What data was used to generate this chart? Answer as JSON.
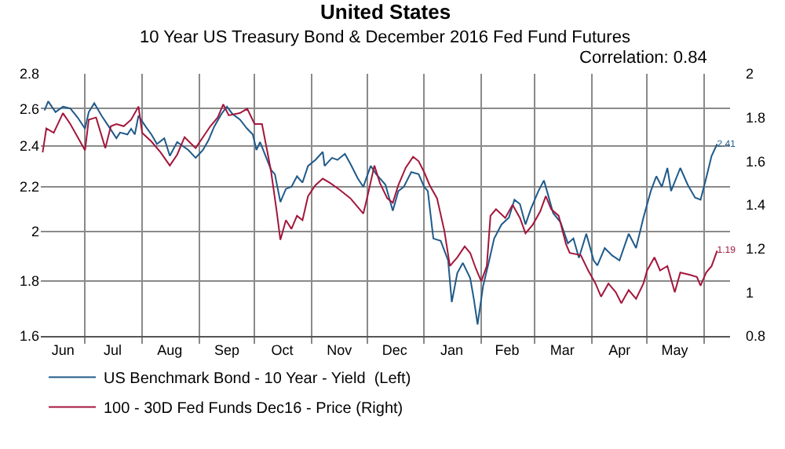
{
  "chart_data": {
    "type": "line",
    "title": "United States",
    "subtitle": "10 Year US Treasury Bond & December 2016 Fed Fund Futures",
    "annotations": [
      "Correlation: 0.84"
    ],
    "log": true,
    "grid": true,
    "legend": "bottom left",
    "xlim": [
      "2015-06-07",
      "2016-06-15"
    ],
    "xticks": [
      {
        "value": "2015-06-19",
        "label": "Jun"
      },
      {
        "value": "2015-07-01",
        "label": null
      },
      {
        "value": "2015-07-16",
        "label": "Jul"
      },
      {
        "value": "2015-08-01",
        "label": null
      },
      {
        "value": "2015-08-16",
        "label": "Aug"
      },
      {
        "value": "2015-09-01",
        "label": null
      },
      {
        "value": "2015-09-16",
        "label": "Sep"
      },
      {
        "value": "2015-10-01",
        "label": null
      },
      {
        "value": "2015-10-16",
        "label": "Oct"
      },
      {
        "value": "2015-11-01",
        "label": null
      },
      {
        "value": "2015-11-16",
        "label": "Nov"
      },
      {
        "value": "2015-12-01",
        "label": null
      },
      {
        "value": "2015-12-16",
        "label": "Dec"
      },
      {
        "value": "2016-01-01",
        "label": null
      },
      {
        "value": "2016-01-16",
        "label": "Jan"
      },
      {
        "value": "2016-02-01",
        "label": null
      },
      {
        "value": "2016-02-15",
        "label": "Feb"
      },
      {
        "value": "2016-03-01",
        "label": null
      },
      {
        "value": "2016-03-16",
        "label": "Mar"
      },
      {
        "value": "2016-04-01",
        "label": null
      },
      {
        "value": "2016-04-16",
        "label": "Apr"
      },
      {
        "value": "2016-05-01",
        "label": null
      },
      {
        "value": "2016-05-16",
        "label": "May"
      },
      {
        "value": "2016-06-01",
        "label": null
      }
    ],
    "ylim": [
      1.6,
      2.8
    ],
    "yticks": [
      1.6,
      1.8,
      2,
      2.2,
      2.4,
      2.6,
      2.8
    ],
    "y2lim": [
      0.8,
      2
    ],
    "y2ticks": [
      0.8,
      1,
      1.2,
      1.4,
      1.6,
      1.8,
      2
    ],
    "series": [
      {
        "name": "US Benchmark Bond - 10 Year - Yield  (Left)",
        "color": "#1f5a8a",
        "x": [
          "2015-06-09",
          "2015-06-11",
          "2015-06-15",
          "2015-06-19",
          "2015-06-23",
          "2015-06-27",
          "2015-07-01",
          "2015-07-03",
          "2015-07-06",
          "2015-07-10",
          "2015-07-14",
          "2015-07-18",
          "2015-07-20",
          "2015-07-24",
          "2015-07-26",
          "2015-07-28",
          "2015-07-30",
          "2015-08-03",
          "2015-08-06",
          "2015-08-09",
          "2015-08-13",
          "2015-08-16",
          "2015-08-20",
          "2015-08-26",
          "2015-08-30",
          "2015-09-03",
          "2015-09-06",
          "2015-09-09",
          "2015-09-13",
          "2015-09-16",
          "2015-09-19",
          "2015-09-23",
          "2015-09-27",
          "2015-09-30",
          "2015-10-02",
          "2015-10-04",
          "2015-10-10",
          "2015-10-12",
          "2015-10-15",
          "2015-10-18",
          "2015-10-21",
          "2015-10-24",
          "2015-10-27",
          "2015-10-30",
          "2015-11-03",
          "2015-11-07",
          "2015-11-08",
          "2015-11-12",
          "2015-11-15",
          "2015-11-19",
          "2015-11-22",
          "2015-11-26",
          "2015-11-29",
          "2015-12-03",
          "2015-12-06",
          "2015-12-11",
          "2015-12-15",
          "2015-12-18",
          "2015-12-21",
          "2015-12-25",
          "2015-12-29",
          "2016-01-01",
          "2016-01-03",
          "2016-01-06",
          "2016-01-10",
          "2016-01-14",
          "2016-01-16",
          "2016-01-19",
          "2016-01-22",
          "2016-01-26",
          "2016-01-28",
          "2016-01-30",
          "2016-02-02",
          "2016-02-05",
          "2016-02-08",
          "2016-02-12",
          "2016-02-16",
          "2016-02-19",
          "2016-02-22",
          "2016-02-25",
          "2016-02-28",
          "2016-03-03",
          "2016-03-06",
          "2016-03-08",
          "2016-03-11",
          "2016-03-15",
          "2016-03-19",
          "2016-03-22",
          "2016-03-25",
          "2016-03-29",
          "2016-04-02",
          "2016-04-04",
          "2016-04-08",
          "2016-04-12",
          "2016-04-16",
          "2016-04-21",
          "2016-04-25",
          "2016-04-29",
          "2016-05-03",
          "2016-05-06",
          "2016-05-09",
          "2016-05-12",
          "2016-05-14",
          "2016-05-19",
          "2016-05-23",
          "2016-05-27",
          "2016-05-30",
          "2016-06-02",
          "2016-06-05",
          "2016-06-08"
        ],
        "values": [
          2.59,
          2.64,
          2.58,
          2.61,
          2.6,
          2.55,
          2.49,
          2.58,
          2.63,
          2.56,
          2.5,
          2.44,
          2.47,
          2.46,
          2.49,
          2.46,
          2.56,
          2.5,
          2.46,
          2.41,
          2.44,
          2.35,
          2.42,
          2.38,
          2.34,
          2.38,
          2.43,
          2.5,
          2.57,
          2.61,
          2.57,
          2.54,
          2.49,
          2.46,
          2.38,
          2.42,
          2.28,
          2.26,
          2.13,
          2.19,
          2.2,
          2.25,
          2.22,
          2.3,
          2.33,
          2.37,
          2.3,
          2.34,
          2.33,
          2.36,
          2.31,
          2.24,
          2.2,
          2.3,
          2.26,
          2.21,
          2.09,
          2.18,
          2.2,
          2.27,
          2.26,
          2.2,
          2.18,
          1.97,
          1.96,
          1.88,
          1.72,
          1.83,
          1.87,
          1.81,
          1.73,
          1.64,
          1.78,
          1.87,
          1.97,
          2.03,
          2.06,
          2.14,
          2.12,
          2.03,
          2.1,
          2.18,
          2.23,
          2.17,
          2.08,
          2.04,
          1.95,
          1.97,
          1.89,
          1.99,
          1.88,
          1.86,
          1.93,
          1.9,
          1.88,
          1.99,
          1.93,
          2.06,
          2.18,
          2.25,
          2.2,
          2.29,
          2.18,
          2.29,
          2.21,
          2.15,
          2.14,
          2.24,
          2.35,
          2.41
        ],
        "value_labels": [
          null,
          null,
          null,
          null,
          null,
          null,
          null,
          null,
          null,
          null,
          null,
          null,
          null,
          null,
          null,
          null,
          null,
          null,
          null,
          null,
          null,
          null,
          null,
          null,
          null,
          null,
          null,
          null,
          null,
          null,
          null,
          null,
          null,
          null,
          null,
          null,
          null,
          null,
          null,
          null,
          null,
          null,
          null,
          null,
          null,
          null,
          null,
          null,
          null,
          null,
          null,
          null,
          null,
          null,
          null,
          null,
          null,
          null,
          null,
          null,
          null,
          null,
          null,
          null,
          null,
          null,
          null,
          null,
          null,
          null,
          null,
          null,
          null,
          null,
          null,
          null,
          null,
          null,
          null,
          null,
          null,
          null,
          null,
          null,
          null,
          null,
          null,
          null,
          null,
          null,
          null,
          null,
          null,
          null,
          null,
          null,
          null,
          null,
          null,
          null,
          null,
          null,
          null,
          null,
          null,
          null,
          null,
          null,
          null,
          "2.41"
        ]
      },
      {
        "name": "100 - 30D Fed Funds Dec16 - Price (Right)",
        "color": "#a3173c",
        "axis": "y2",
        "x": [
          "2015-06-08",
          "2015-06-10",
          "2015-06-14",
          "2015-06-19",
          "2015-06-23",
          "2015-06-27",
          "2015-07-01",
          "2015-07-03",
          "2015-07-07",
          "2015-07-12",
          "2015-07-15",
          "2015-07-18",
          "2015-07-22",
          "2015-07-26",
          "2015-07-30",
          "2015-08-01",
          "2015-08-06",
          "2015-08-11",
          "2015-08-16",
          "2015-08-20",
          "2015-08-24",
          "2015-08-30",
          "2015-09-03",
          "2015-09-07",
          "2015-09-11",
          "2015-09-14",
          "2015-09-17",
          "2015-09-23",
          "2015-09-27",
          "2015-10-01",
          "2015-10-05",
          "2015-10-08",
          "2015-10-10",
          "2015-10-13",
          "2015-10-15",
          "2015-10-18",
          "2015-10-21",
          "2015-10-24",
          "2015-10-27",
          "2015-10-30",
          "2015-11-03",
          "2015-11-07",
          "2015-11-11",
          "2015-11-16",
          "2015-11-22",
          "2015-11-29",
          "2015-12-01",
          "2015-12-05",
          "2015-12-08",
          "2015-12-12",
          "2015-12-15",
          "2015-12-18",
          "2015-12-22",
          "2015-12-26",
          "2015-12-29",
          "2016-01-01",
          "2016-01-04",
          "2016-01-08",
          "2016-01-12",
          "2016-01-15",
          "2016-01-19",
          "2016-01-23",
          "2016-01-26",
          "2016-01-29",
          "2016-02-01",
          "2016-02-04",
          "2016-02-06",
          "2016-02-09",
          "2016-02-14",
          "2016-02-18",
          "2016-02-22",
          "2016-02-25",
          "2016-02-29",
          "2016-03-04",
          "2016-03-07",
          "2016-03-10",
          "2016-03-14",
          "2016-03-18",
          "2016-03-20",
          "2016-03-26",
          "2016-03-30",
          "2016-04-03",
          "2016-04-06",
          "2016-04-10",
          "2016-04-14",
          "2016-04-17",
          "2016-04-21",
          "2016-04-25",
          "2016-04-29",
          "2016-05-01",
          "2016-05-05",
          "2016-05-08",
          "2016-05-12",
          "2016-05-16",
          "2016-05-19",
          "2016-05-24",
          "2016-05-28",
          "2016-05-30",
          "2016-06-02",
          "2016-06-05",
          "2016-06-08"
        ],
        "values": [
          1.64,
          1.75,
          1.73,
          1.82,
          1.77,
          1.71,
          1.65,
          1.79,
          1.8,
          1.66,
          1.76,
          1.77,
          1.76,
          1.79,
          1.85,
          1.73,
          1.69,
          1.64,
          1.58,
          1.63,
          1.71,
          1.66,
          1.71,
          1.76,
          1.8,
          1.86,
          1.81,
          1.82,
          1.84,
          1.77,
          1.77,
          1.64,
          1.55,
          1.37,
          1.24,
          1.33,
          1.29,
          1.35,
          1.33,
          1.44,
          1.49,
          1.52,
          1.5,
          1.47,
          1.43,
          1.36,
          1.43,
          1.58,
          1.5,
          1.43,
          1.41,
          1.49,
          1.57,
          1.62,
          1.6,
          1.55,
          1.49,
          1.43,
          1.28,
          1.12,
          1.16,
          1.21,
          1.18,
          1.11,
          1.05,
          1.12,
          1.35,
          1.38,
          1.34,
          1.4,
          1.34,
          1.27,
          1.31,
          1.37,
          1.44,
          1.38,
          1.35,
          1.22,
          1.18,
          1.17,
          1.1,
          1.04,
          0.98,
          1.04,
          1,
          0.95,
          1.01,
          0.97,
          1.04,
          1.1,
          1.16,
          1.1,
          1.12,
          1,
          1.09,
          1.08,
          1.07,
          1.03,
          1.09,
          1.12,
          1.19
        ],
        "value_labels": [
          null,
          null,
          null,
          null,
          null,
          null,
          null,
          null,
          null,
          null,
          null,
          null,
          null,
          null,
          null,
          null,
          null,
          null,
          null,
          null,
          null,
          null,
          null,
          null,
          null,
          null,
          null,
          null,
          null,
          null,
          null,
          null,
          null,
          null,
          null,
          null,
          null,
          null,
          null,
          null,
          null,
          null,
          null,
          null,
          null,
          null,
          null,
          null,
          null,
          null,
          null,
          null,
          null,
          null,
          null,
          null,
          null,
          null,
          null,
          null,
          null,
          null,
          null,
          null,
          null,
          null,
          null,
          null,
          null,
          null,
          null,
          null,
          null,
          null,
          null,
          null,
          null,
          null,
          null,
          null,
          null,
          null,
          null,
          null,
          null,
          null,
          null,
          null,
          null,
          null,
          null,
          null,
          null,
          null,
          null,
          null,
          null,
          null,
          null,
          null,
          "1.19"
        ]
      }
    ]
  }
}
